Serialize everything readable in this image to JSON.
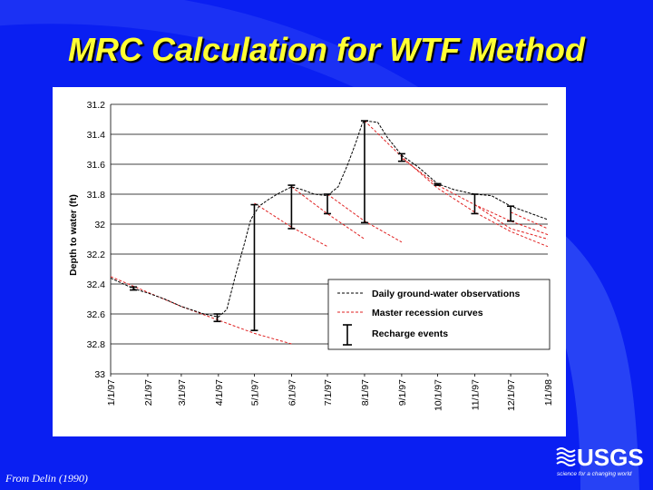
{
  "slide": {
    "title": "MRC Calculation for WTF Method",
    "source": "From Delin (1990)",
    "logo_text": "USGS",
    "logo_tagline": "science for a changing world"
  },
  "colors": {
    "background": "#0a1ff2",
    "title": "#ffff33",
    "recession": "#e02020",
    "observations": "#000000"
  },
  "chart_data": {
    "type": "line",
    "ylabel": "Depth to water (ft)",
    "ylim": [
      31.2,
      33
    ],
    "y_inverted": true,
    "yticks": [
      "31.2",
      "31.4",
      "31.6",
      "31.8",
      "32",
      "32.2",
      "32.4",
      "32.6",
      "32.8",
      "33"
    ],
    "x_domain": [
      "1997-01-01",
      "1998-01-01"
    ],
    "xticks": [
      {
        "date": "1997-01-01",
        "label": "1/1/97"
      },
      {
        "date": "1997-02-01",
        "label": "2/1/97"
      },
      {
        "date": "1997-03-01",
        "label": "3/1/97"
      },
      {
        "date": "1997-04-01",
        "label": "4/1/97"
      },
      {
        "date": "1997-05-01",
        "label": "5/1/97"
      },
      {
        "date": "1997-06-01",
        "label": "6/1/97"
      },
      {
        "date": "1997-07-01",
        "label": "7/1/97"
      },
      {
        "date": "1997-08-01",
        "label": "8/1/97"
      },
      {
        "date": "1997-09-01",
        "label": "9/1/97"
      },
      {
        "date": "1997-10-01",
        "label": "10/1/97"
      },
      {
        "date": "1997-11-01",
        "label": "11/1/97"
      },
      {
        "date": "1997-12-01",
        "label": "12/1/97"
      },
      {
        "date": "1998-01-01",
        "label": "1/1/98"
      }
    ],
    "grid": "horizontal",
    "legend_position": "lower-right",
    "legend": [
      {
        "label": "Daily ground-water observations",
        "style": "dashed-black"
      },
      {
        "label": "Master recession curves",
        "style": "dashed-red"
      },
      {
        "label": "Recharge events",
        "style": "i-bar"
      }
    ],
    "series": [
      {
        "name": "Daily ground-water observations",
        "points": [
          [
            "1997-01-01",
            32.36
          ],
          [
            "1997-01-20",
            32.43
          ],
          [
            "1997-02-01",
            32.46
          ],
          [
            "1997-02-15",
            32.5
          ],
          [
            "1997-03-01",
            32.55
          ],
          [
            "1997-03-20",
            32.6
          ],
          [
            "1997-04-01",
            32.62
          ],
          [
            "1997-04-08",
            32.57
          ],
          [
            "1997-04-15",
            32.35
          ],
          [
            "1997-04-22",
            32.15
          ],
          [
            "1997-04-28",
            31.97
          ],
          [
            "1997-05-05",
            31.88
          ],
          [
            "1997-05-12",
            31.84
          ],
          [
            "1997-05-20",
            31.8
          ],
          [
            "1997-06-01",
            31.75
          ],
          [
            "1997-06-10",
            31.77
          ],
          [
            "1997-06-20",
            31.8
          ],
          [
            "1997-07-01",
            31.81
          ],
          [
            "1997-07-10",
            31.75
          ],
          [
            "1997-07-18",
            31.6
          ],
          [
            "1997-07-25",
            31.45
          ],
          [
            "1997-07-30",
            31.33
          ],
          [
            "1997-08-01",
            31.31
          ],
          [
            "1997-08-12",
            31.32
          ],
          [
            "1997-08-20",
            31.42
          ],
          [
            "1997-09-01",
            31.54
          ],
          [
            "1997-09-15",
            31.62
          ],
          [
            "1997-10-01",
            31.73
          ],
          [
            "1997-10-15",
            31.77
          ],
          [
            "1997-11-01",
            31.8
          ],
          [
            "1997-11-15",
            31.81
          ],
          [
            "1997-12-01",
            31.88
          ],
          [
            "1998-01-01",
            31.97
          ]
        ]
      },
      {
        "name": "Master recession curves",
        "segments": [
          [
            [
              "1997-01-01",
              32.35
            ],
            [
              "1997-03-01",
              32.55
            ],
            [
              "1997-05-01",
              32.73
            ],
            [
              "1997-06-01",
              32.8
            ]
          ],
          [
            [
              "1997-05-01",
              31.86
            ],
            [
              "1997-06-01",
              32.02
            ],
            [
              "1997-07-01",
              32.15
            ]
          ],
          [
            [
              "1997-06-01",
              31.75
            ],
            [
              "1997-07-01",
              31.93
            ],
            [
              "1997-08-01",
              32.1
            ]
          ],
          [
            [
              "1997-07-01",
              31.8
            ],
            [
              "1997-08-01",
              31.98
            ],
            [
              "1997-09-01",
              32.12
            ]
          ],
          [
            [
              "1997-08-01",
              31.31
            ],
            [
              "1997-09-01",
              31.55
            ],
            [
              "1997-10-01",
              31.76
            ],
            [
              "1997-11-01",
              31.92
            ],
            [
              "1997-12-01",
              32.05
            ],
            [
              "1998-01-01",
              32.15
            ]
          ],
          [
            [
              "1997-09-01",
              31.56
            ],
            [
              "1997-10-01",
              31.74
            ],
            [
              "1997-11-01",
              31.87
            ],
            [
              "1997-12-01",
              31.98
            ],
            [
              "1998-01-01",
              32.07
            ]
          ],
          [
            [
              "1997-11-01",
              31.87
            ],
            [
              "1997-12-01",
              32.03
            ],
            [
              "1998-01-01",
              32.1
            ]
          ],
          [
            [
              "1997-12-01",
              31.92
            ],
            [
              "1998-01-01",
              32.03
            ]
          ]
        ]
      }
    ],
    "recharge_events": [
      {
        "date": "1997-01-20",
        "from": 32.44,
        "to": 32.42
      },
      {
        "date": "1997-03-31",
        "from": 32.65,
        "to": 32.6
      },
      {
        "date": "1997-05-01",
        "from": 32.71,
        "to": 31.87
      },
      {
        "date": "1997-06-01",
        "from": 32.03,
        "to": 31.74
      },
      {
        "date": "1997-07-01",
        "from": 31.93,
        "to": 31.8
      },
      {
        "date": "1997-08-01",
        "from": 31.99,
        "to": 31.31
      },
      {
        "date": "1997-09-01",
        "from": 31.58,
        "to": 31.53
      },
      {
        "date": "1997-10-01",
        "from": 31.74,
        "to": 31.73
      },
      {
        "date": "1997-11-01",
        "from": 31.93,
        "to": 31.8
      },
      {
        "date": "1997-12-01",
        "from": 31.98,
        "to": 31.88
      }
    ]
  }
}
